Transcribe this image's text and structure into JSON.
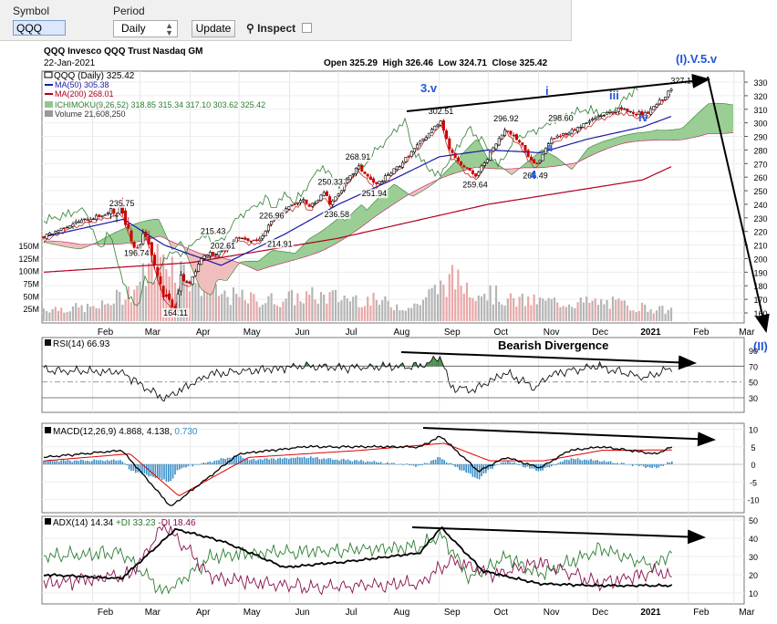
{
  "toolbar": {
    "symbol_label": "Symbol",
    "symbol_value": "QQQ",
    "period_label": "Period",
    "period_value": "Daily",
    "update_label": "Update",
    "inspect_label": "Inspect"
  },
  "chart_header": {
    "name": "QQQ Invesco QQQ Trust Nasdaq GM",
    "date": "22-Jan-2021",
    "ohlc": "Open 325.29  High 326.46  Low 324.71  Close 325.42",
    "legend_price": "QQQ (Daily) 325.42",
    "legend_ma50": "MA(50) 305.38",
    "legend_ma200": "MA(200) 268.01",
    "legend_ichimoku": "ICHIMOKU(9,26,52) 318.85 315.34 317.10 303.62 325.42",
    "legend_volume": "Volume 21,608,250"
  },
  "indicator_headers": {
    "rsi": "RSI(14) 66.93",
    "macd_main": "MACD(12,26,9) 4.868, 4.138,",
    "macd_hist": "0.730",
    "adx_main": "ADX(14) 14.34",
    "adx_plus": "+DI 33.23",
    "adx_minus": "-DI 18.46"
  },
  "annotations": {
    "wave_3v": "3.v",
    "wave_4": "4",
    "wave_i": "i",
    "wave_ii": "ii",
    "wave_iii": "iii",
    "wave_iv": "iv",
    "wave_i_v_5_v": "(I).V.5.v",
    "wave_ii_big": "(II)",
    "bearish_divergence": "Bearish Divergence"
  },
  "colors": {
    "up": "#000000",
    "down": "#cc0000",
    "ma50": "#1a1aa6",
    "ma200": "#b00020",
    "kumo_bull": "#8fc98a",
    "kumo_bear": "#f0b7b7",
    "rsi": "#111111",
    "macd": "#000000",
    "signal": "#dd0000",
    "histogram": "#3a8fc7",
    "adx": "#000000",
    "plus_di": "#2e7d32",
    "minus_di": "#880e4f",
    "wave_label": "#2255dd",
    "volume_up": "#b5b5b5",
    "volume_down": "#e9a8a8"
  },
  "chart_data": [
    {
      "type": "candlestick",
      "x_ticks": [
        "Feb",
        "Mar",
        "Apr",
        "May",
        "Jun",
        "Jul",
        "Aug",
        "Sep",
        "Oct",
        "Nov",
        "Dec",
        "2021",
        "Feb",
        "Mar"
      ],
      "y_ticks": [
        160,
        170,
        180,
        190,
        200,
        210,
        220,
        230,
        240,
        250,
        260,
        270,
        280,
        290,
        300,
        310,
        320,
        330
      ],
      "ylim": [
        155,
        335
      ],
      "volume_ticks": [
        "150M",
        "125M",
        "100M",
        "75M",
        "50M",
        "25M"
      ],
      "price_labels": [
        "235.75",
        "196.74",
        "164.11",
        "215.43",
        "202.61",
        "226.96",
        "214.91",
        "250.33",
        "236.58",
        "268.91",
        "251.94",
        "302.51",
        "259.64",
        "296.92",
        "266.49",
        "298.60",
        "327.13"
      ],
      "close_path": [
        [
          "2020-01-02",
          216
        ],
        [
          "2020-01-20",
          226
        ],
        [
          "2020-02-19",
          236
        ],
        [
          "2020-02-28",
          205
        ],
        [
          "2020-03-04",
          222
        ],
        [
          "2020-03-12",
          188
        ],
        [
          "2020-03-16",
          172
        ],
        [
          "2020-03-23",
          165
        ],
        [
          "2020-03-26",
          185
        ],
        [
          "2020-04-01",
          182
        ],
        [
          "2020-04-09",
          203
        ],
        [
          "2020-04-21",
          205
        ],
        [
          "2020-04-29",
          216
        ],
        [
          "2020-05-13",
          213
        ],
        [
          "2020-05-22",
          230
        ],
        [
          "2020-06-10",
          245
        ],
        [
          "2020-06-12",
          237
        ],
        [
          "2020-06-23",
          249
        ],
        [
          "2020-06-26",
          240
        ],
        [
          "2020-07-10",
          263
        ],
        [
          "2020-07-13",
          268
        ],
        [
          "2020-07-24",
          254
        ],
        [
          "2020-08-07",
          268
        ],
        [
          "2020-08-20",
          285
        ],
        [
          "2020-09-02",
          302
        ],
        [
          "2020-09-08",
          278
        ],
        [
          "2020-09-23",
          260
        ],
        [
          "2020-10-12",
          296
        ],
        [
          "2020-10-21",
          285
        ],
        [
          "2020-10-30",
          268
        ],
        [
          "2020-11-09",
          288
        ],
        [
          "2020-11-23",
          295
        ],
        [
          "2020-12-08",
          305
        ],
        [
          "2020-12-21",
          310
        ],
        [
          "2021-01-06",
          306
        ],
        [
          "2021-01-12",
          313
        ],
        [
          "2021-01-22",
          325
        ]
      ],
      "ma50_path": [
        [
          "2020-01-02",
          216
        ],
        [
          "2020-02-20",
          229
        ],
        [
          "2020-03-16",
          210
        ],
        [
          "2020-04-20",
          195
        ],
        [
          "2020-05-29",
          218
        ],
        [
          "2020-07-01",
          240
        ],
        [
          "2020-08-03",
          258
        ],
        [
          "2020-09-01",
          275
        ],
        [
          "2020-10-01",
          280
        ],
        [
          "2020-11-02",
          278
        ],
        [
          "2020-12-01",
          288
        ],
        [
          "2021-01-04",
          297
        ],
        [
          "2021-01-22",
          305
        ]
      ],
      "ma200_path": [
        [
          "2020-01-02",
          190
        ],
        [
          "2020-04-01",
          197
        ],
        [
          "2020-07-01",
          215
        ],
        [
          "2020-10-01",
          240
        ],
        [
          "2021-01-04",
          258
        ],
        [
          "2021-01-22",
          268
        ]
      ],
      "volume_millions": [
        [
          "2020-01-10",
          28
        ],
        [
          "2020-02-05",
          30
        ],
        [
          "2020-02-26",
          70
        ],
        [
          "2020-03-09",
          125
        ],
        [
          "2020-03-16",
          150
        ],
        [
          "2020-03-23",
          120
        ],
        [
          "2020-04-15",
          60
        ],
        [
          "2020-05-15",
          45
        ],
        [
          "2020-06-15",
          55
        ],
        [
          "2020-07-15",
          50
        ],
        [
          "2020-08-15",
          30
        ],
        [
          "2020-09-08",
          92
        ],
        [
          "2020-10-15",
          45
        ],
        [
          "2020-11-15",
          42
        ],
        [
          "2020-12-15",
          40
        ],
        [
          "2021-01-22",
          22
        ]
      ]
    },
    {
      "type": "line",
      "title": "RSI(14) 66.93",
      "y_ticks": [
        30,
        50,
        70,
        90
      ],
      "ylim": [
        20,
        95
      ],
      "x_ticks": [],
      "series": [
        {
          "name": "RSI(14)",
          "values": [
            [
              "2020-01-02",
              65
            ],
            [
              "2020-02-19",
              62
            ],
            [
              "2020-03-16",
              28
            ],
            [
              "2020-04-13",
              60
            ],
            [
              "2020-06-10",
              70
            ],
            [
              "2020-07-10",
              68
            ],
            [
              "2020-08-20",
              70
            ],
            [
              "2020-09-02",
              81
            ],
            [
              "2020-09-08",
              44
            ],
            [
              "2020-09-23",
              40
            ],
            [
              "2020-10-12",
              62
            ],
            [
              "2020-10-30",
              42
            ],
            [
              "2020-11-09",
              60
            ],
            [
              "2020-12-08",
              70
            ],
            [
              "2021-01-05",
              55
            ],
            [
              "2021-01-22",
              67
            ]
          ]
        }
      ],
      "reference_lines": [
        70,
        30
      ]
    },
    {
      "type": "line",
      "title": "MACD(12,26,9) 4.868, 4.138, 0.730",
      "y_ticks": [
        -10,
        -5,
        0,
        5,
        10
      ],
      "ylim": [
        -13,
        12
      ],
      "x_ticks": [],
      "series": [
        {
          "name": "MACD(12,26,9)",
          "values": [
            [
              "2020-01-02",
              2
            ],
            [
              "2020-02-19",
              4
            ],
            [
              "2020-03-20",
              -12
            ],
            [
              "2020-05-01",
              3
            ],
            [
              "2020-06-10",
              5
            ],
            [
              "2020-07-15",
              5
            ],
            [
              "2020-08-20",
              5
            ],
            [
              "2020-09-02",
              8
            ],
            [
              "2020-09-25",
              -2
            ],
            [
              "2020-10-12",
              2
            ],
            [
              "2020-11-02",
              -1
            ],
            [
              "2020-11-20",
              4
            ],
            [
              "2020-12-10",
              5
            ],
            [
              "2021-01-12",
              3
            ],
            [
              "2021-01-22",
              4.9
            ]
          ]
        },
        {
          "name": "Signal",
          "values": [
            [
              "2020-01-02",
              1
            ],
            [
              "2020-02-24",
              3
            ],
            [
              "2020-03-25",
              -9
            ],
            [
              "2020-05-07",
              2
            ],
            [
              "2020-07-15",
              4
            ],
            [
              "2020-09-04",
              6
            ],
            [
              "2020-10-02",
              1
            ],
            [
              "2020-11-04",
              1
            ],
            [
              "2020-12-10",
              4
            ],
            [
              "2021-01-22",
              4.1
            ]
          ]
        }
      ]
    },
    {
      "type": "line",
      "title": "ADX(14) 14.34 +DI 33.23 -DI 18.46",
      "y_ticks": [
        10,
        20,
        30,
        40,
        50
      ],
      "ylim": [
        5,
        52
      ],
      "x_ticks": [
        "Feb",
        "Mar",
        "Apr",
        "May",
        "Jun",
        "Jul",
        "Aug",
        "Sep",
        "Oct",
        "Nov",
        "Dec",
        "2021",
        "Feb",
        "Mar"
      ],
      "series": [
        {
          "name": "ADX(14)",
          "values": [
            [
              "2020-01-02",
              20
            ],
            [
              "2020-02-19",
              18
            ],
            [
              "2020-03-23",
              45
            ],
            [
              "2020-04-22",
              38
            ],
            [
              "2020-05-29",
              24
            ],
            [
              "2020-07-15",
              28
            ],
            [
              "2020-08-20",
              32
            ],
            [
              "2020-09-02",
              46
            ],
            [
              "2020-09-28",
              22
            ],
            [
              "2020-11-02",
              15
            ],
            [
              "2020-12-10",
              14
            ],
            [
              "2021-01-22",
              14
            ]
          ]
        },
        {
          "name": "+DI",
          "values": [
            [
              "2020-01-02",
              30
            ],
            [
              "2020-02-19",
              32
            ],
            [
              "2020-03-16",
              10
            ],
            [
              "2020-04-15",
              30
            ],
            [
              "2020-06-15",
              33
            ],
            [
              "2020-08-20",
              35
            ],
            [
              "2020-09-02",
              42
            ],
            [
              "2020-09-20",
              18
            ],
            [
              "2020-10-12",
              30
            ],
            [
              "2020-11-02",
              20
            ],
            [
              "2020-12-08",
              34
            ],
            [
              "2021-01-12",
              25
            ],
            [
              "2021-01-22",
              33
            ]
          ]
        },
        {
          "name": "-DI",
          "values": [
            [
              "2020-01-02",
              15
            ],
            [
              "2020-02-24",
              20
            ],
            [
              "2020-03-16",
              47
            ],
            [
              "2020-04-15",
              18
            ],
            [
              "2020-06-15",
              13
            ],
            [
              "2020-08-20",
              15
            ],
            [
              "2020-09-08",
              28
            ],
            [
              "2020-10-05",
              20
            ],
            [
              "2020-11-02",
              27
            ],
            [
              "2020-12-08",
              15
            ],
            [
              "2021-01-12",
              22
            ],
            [
              "2021-01-22",
              18
            ]
          ]
        }
      ]
    }
  ]
}
